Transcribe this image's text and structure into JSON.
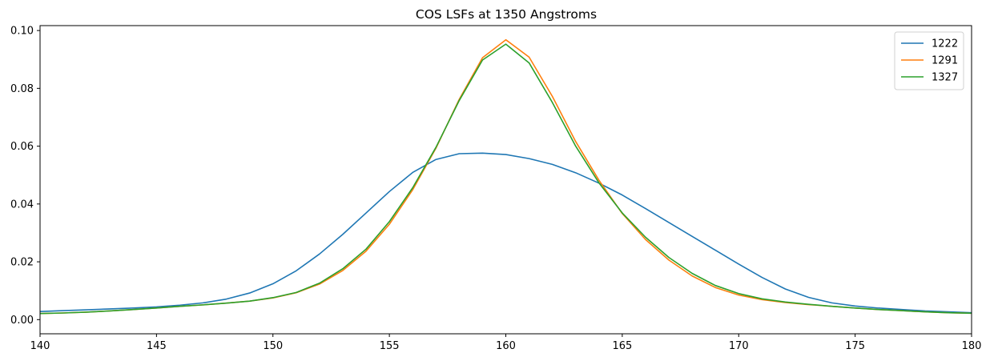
{
  "chart_data": {
    "type": "line",
    "title": "COS LSFs at 1350 Angstroms",
    "xlabel": "",
    "ylabel": "",
    "xlim": [
      140,
      180
    ],
    "ylim": [
      -0.0049,
      0.1017
    ],
    "grid": false,
    "legend": "top-right",
    "x_ticks": [
      "140",
      "145",
      "150",
      "155",
      "160",
      "165",
      "170",
      "175",
      "180"
    ],
    "y_ticks": [
      "0.00",
      "0.02",
      "0.04",
      "0.06",
      "0.08",
      "0.10"
    ],
    "x": [
      140,
      141,
      142,
      143,
      144,
      145,
      146,
      147,
      148,
      149,
      150,
      151,
      152,
      153,
      154,
      155,
      156,
      157,
      158,
      159,
      160,
      161,
      162,
      163,
      164,
      165,
      166,
      167,
      168,
      169,
      170,
      171,
      172,
      173,
      174,
      175,
      176,
      177,
      178,
      179,
      180
    ],
    "series": [
      {
        "name": "1222",
        "color": "#1f77b4",
        "values": [
          0.0028,
          0.0031,
          0.0034,
          0.0037,
          0.004,
          0.0044,
          0.005,
          0.0058,
          0.0071,
          0.0092,
          0.0124,
          0.0169,
          0.0227,
          0.0295,
          0.0369,
          0.0443,
          0.0509,
          0.0554,
          0.0574,
          0.0576,
          0.0571,
          0.0557,
          0.0537,
          0.0508,
          0.0472,
          0.0431,
          0.0384,
          0.0336,
          0.0288,
          0.024,
          0.0192,
          0.0146,
          0.0106,
          0.0077,
          0.0058,
          0.0047,
          0.004,
          0.0035,
          0.003,
          0.0027,
          0.0024
        ]
      },
      {
        "name": "1291",
        "color": "#ff7f0e",
        "values": [
          0.0021,
          0.0023,
          0.0026,
          0.003,
          0.0035,
          0.004,
          0.0046,
          0.0051,
          0.0057,
          0.0064,
          0.0075,
          0.0093,
          0.0123,
          0.017,
          0.0237,
          0.033,
          0.0449,
          0.0593,
          0.0762,
          0.0906,
          0.0968,
          0.0908,
          0.0772,
          0.0616,
          0.0482,
          0.0367,
          0.0277,
          0.0206,
          0.0151,
          0.0111,
          0.0085,
          0.0069,
          0.0059,
          0.0052,
          0.0046,
          0.004,
          0.0035,
          0.0031,
          0.0027,
          0.0024,
          0.0022
        ]
      },
      {
        "name": "1327",
        "color": "#2ca02c",
        "values": [
          0.0021,
          0.0023,
          0.0026,
          0.003,
          0.0035,
          0.004,
          0.0046,
          0.0051,
          0.0057,
          0.0064,
          0.0076,
          0.0094,
          0.0126,
          0.0176,
          0.0244,
          0.0339,
          0.0456,
          0.0596,
          0.0758,
          0.0898,
          0.0953,
          0.0888,
          0.0751,
          0.06,
          0.0473,
          0.0369,
          0.0285,
          0.0215,
          0.016,
          0.0118,
          0.009,
          0.0072,
          0.0061,
          0.0053,
          0.0046,
          0.004,
          0.0035,
          0.0031,
          0.0027,
          0.0024,
          0.0022
        ]
      }
    ]
  }
}
